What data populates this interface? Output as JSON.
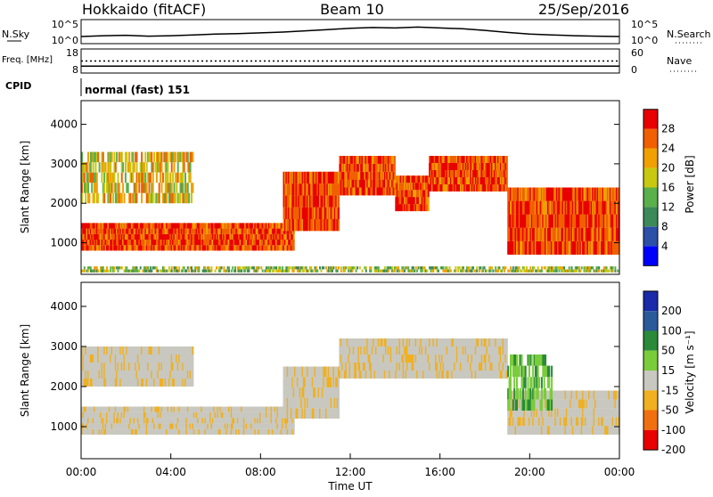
{
  "header": {
    "station": "Hokkaido (fitACF)",
    "beam": "Beam 10",
    "date": "25/Sep/2016"
  },
  "chart_data": [
    {
      "type": "line",
      "name": "noise-panel",
      "left_label": "N.Sky",
      "right_label": "N.Search",
      "left_ticks": [
        "10^5",
        "10^0"
      ],
      "right_ticks": [
        "10^5",
        "10^0"
      ],
      "x": [
        0,
        1,
        2,
        3,
        4,
        5,
        6,
        7,
        8,
        9,
        10,
        11,
        12,
        13,
        14,
        15,
        16,
        17,
        18,
        19,
        20,
        21,
        22,
        23,
        24
      ],
      "values": [
        1.3,
        1.5,
        1.6,
        1.4,
        1.5,
        1.7,
        1.9,
        2.0,
        2.2,
        2.4,
        2.7,
        3.0,
        3.3,
        3.5,
        3.4,
        3.6,
        3.4,
        3.2,
        2.8,
        2.3,
        1.9,
        1.7,
        1.5,
        1.4,
        1.3
      ],
      "ylim": [
        0,
        5
      ]
    },
    {
      "type": "line",
      "name": "frequency-panel",
      "left_label": "Freq. [MHz]",
      "right_label": "Nave",
      "left_ticks": [
        "18",
        "8"
      ],
      "right_ticks": [
        "60",
        "0"
      ],
      "freq_mhz": 10.5,
      "nave": 30
    },
    {
      "type": "table",
      "name": "cpid",
      "label": "CPID",
      "mode": "normal (fast) 151"
    },
    {
      "type": "heatmap",
      "name": "power-panel",
      "ylabel": "Slant Range [km]",
      "yticks": [
        "1000",
        "2000",
        "3000",
        "4000"
      ],
      "ylim": [
        200,
        4600
      ],
      "xlim": [
        0,
        24
      ],
      "colorbar_label": "Power [dB]",
      "colorbar_ticks": [
        "4",
        "8",
        "12",
        "16",
        "20",
        "24",
        "28"
      ],
      "colors": [
        "#0000ff",
        "#2c4fa8",
        "#3c8a5a",
        "#5ab04a",
        "#c8c810",
        "#f0a000",
        "#f06000",
        "#e80000"
      ],
      "echo_bands": [
        {
          "t_start": 0,
          "t_end": 9.5,
          "r_low": 800,
          "r_high": 1500,
          "level": "high"
        },
        {
          "t_start": 0,
          "t_end": 5,
          "r_low": 2000,
          "r_high": 3300,
          "level": "mid"
        },
        {
          "t_start": 9,
          "t_end": 11.5,
          "r_low": 1300,
          "r_high": 2800,
          "level": "high"
        },
        {
          "t_start": 11.5,
          "t_end": 14,
          "r_low": 2200,
          "r_high": 3200,
          "level": "high"
        },
        {
          "t_start": 14,
          "t_end": 15.5,
          "r_low": 1800,
          "r_high": 2700,
          "level": "high"
        },
        {
          "t_start": 15.5,
          "t_end": 19,
          "r_low": 2300,
          "r_high": 3200,
          "level": "high"
        },
        {
          "t_start": 19,
          "t_end": 24,
          "r_low": 700,
          "r_high": 2400,
          "level": "high"
        },
        {
          "t_start": 0,
          "t_end": 24,
          "r_low": 250,
          "r_high": 400,
          "level": "low"
        }
      ]
    },
    {
      "type": "heatmap",
      "name": "velocity-panel",
      "ylabel": "Slant Range [km]",
      "yticks": [
        "1000",
        "2000",
        "3000",
        "4000"
      ],
      "ylim": [
        200,
        4600
      ],
      "xlim": [
        0,
        24
      ],
      "xlabel": "Time UT",
      "xticks": [
        "00:00",
        "04:00",
        "08:00",
        "12:00",
        "16:00",
        "20:00",
        "00:00"
      ],
      "colorbar_label": "Velocity [m s⁻¹]",
      "colorbar_ticks": [
        "200",
        "100",
        "50",
        "15",
        "-15",
        "-50",
        "-100",
        "-200"
      ],
      "colors": [
        "#1a2aa8",
        "#2a5a9a",
        "#2a8a3a",
        "#7acc3a",
        "#c8c8c0",
        "#f0b020",
        "#f07010",
        "#e80000"
      ],
      "echo_bands": [
        {
          "t_start": 0,
          "t_end": 9.5,
          "r_low": 800,
          "r_high": 1500,
          "level": "neutral"
        },
        {
          "t_start": 0,
          "t_end": 5,
          "r_low": 2000,
          "r_high": 3000,
          "level": "neutral"
        },
        {
          "t_start": 9,
          "t_end": 11.5,
          "r_low": 1200,
          "r_high": 2500,
          "level": "neutral"
        },
        {
          "t_start": 11.5,
          "t_end": 19,
          "r_low": 2200,
          "r_high": 3200,
          "level": "neutral"
        },
        {
          "t_start": 19,
          "t_end": 24,
          "r_low": 800,
          "r_high": 1900,
          "level": "neutral"
        },
        {
          "t_start": 19,
          "t_end": 21,
          "r_low": 1400,
          "r_high": 2800,
          "level": "positive"
        }
      ]
    }
  ]
}
